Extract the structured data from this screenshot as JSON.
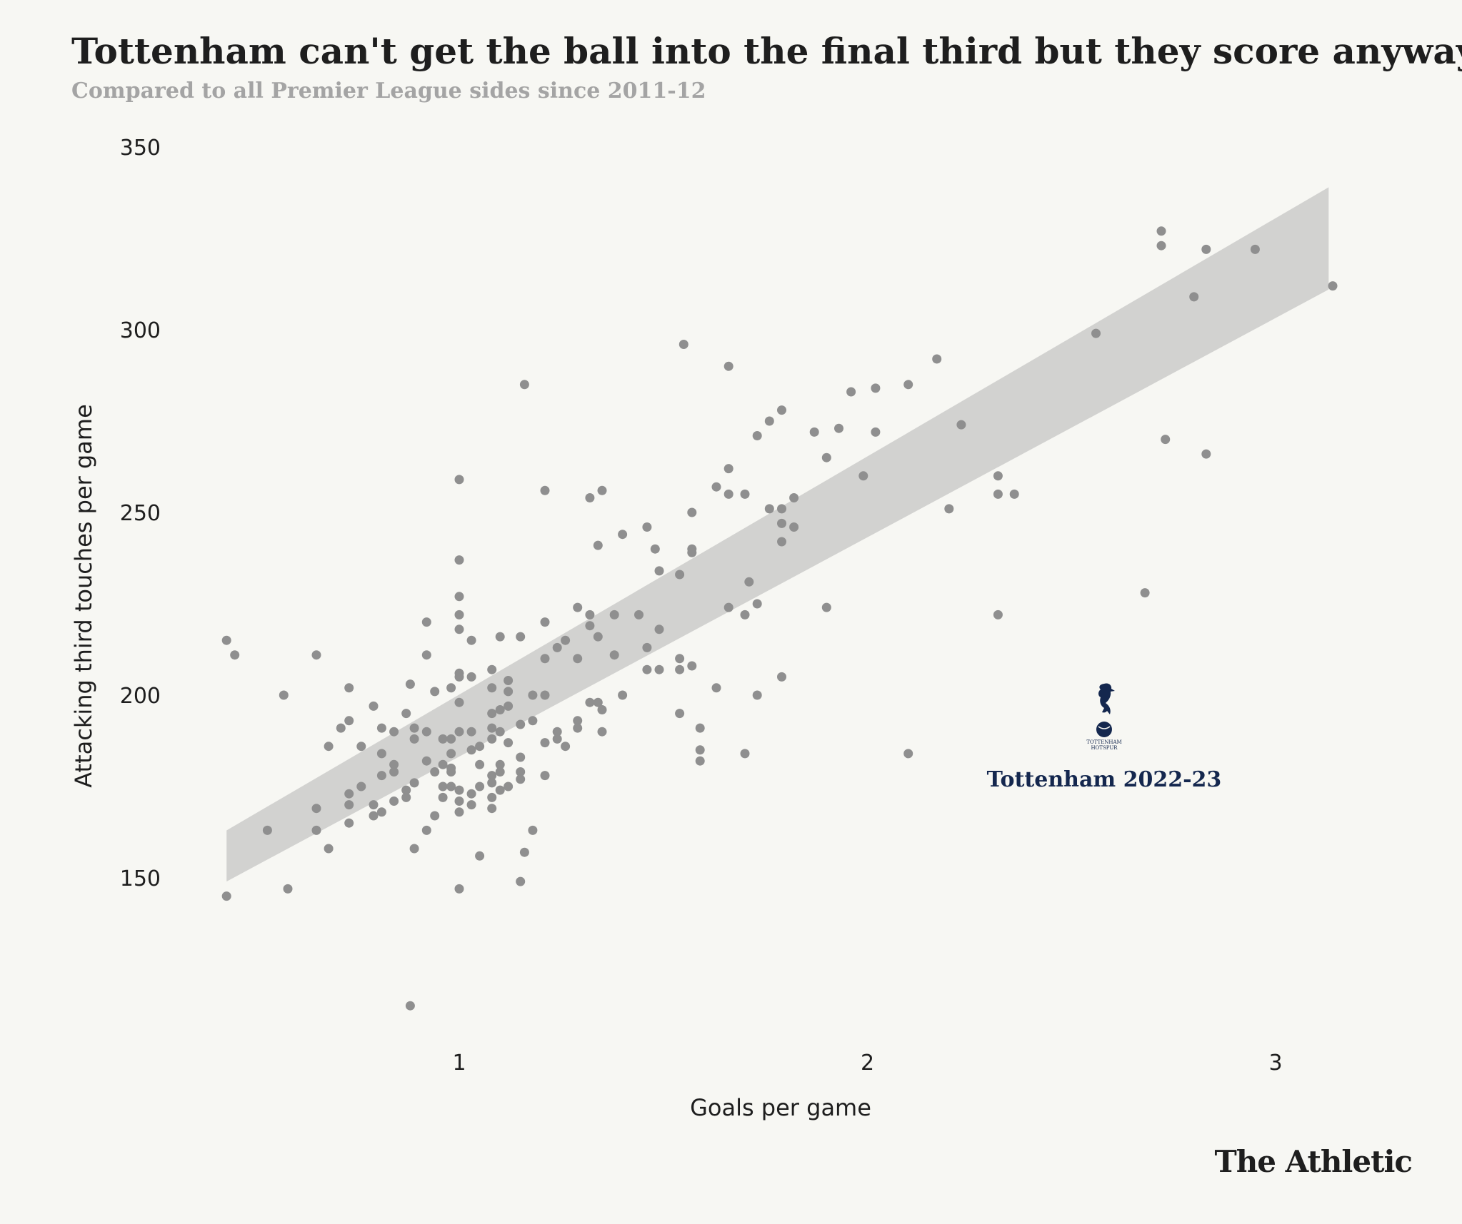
{
  "header": {
    "title": "Tottenham can't get the ball into the final third but they score anyway",
    "subtitle": "Compared to all Premier League sides since 2011-12"
  },
  "brand": "The Athletic",
  "colors": {
    "background": "#f7f7f3",
    "points": "#8f8f8f",
    "band": "#d2d2d0",
    "highlight": "#14274e"
  },
  "chart_data": {
    "type": "scatter",
    "xlabel": "Goals per game",
    "ylabel": "Attacking third touches per game",
    "xlim": [
      0.42,
      3.15
    ],
    "ylim": [
      110,
      350
    ],
    "xticks": [
      1,
      2,
      3
    ],
    "yticks": [
      150,
      200,
      250,
      300,
      350
    ],
    "grid": false,
    "legend": "none",
    "trend_band": {
      "x": [
        0.43,
        3.13
      ],
      "upper": [
        163,
        339
      ],
      "lower": [
        149,
        311
      ]
    },
    "annotation": {
      "label": "Tottenham 2022-23",
      "icon": "tottenham-crest-icon",
      "crest_text": [
        "TOTTENHAM",
        "HOTSPUR"
      ],
      "x": 2.58,
      "y": 175
    },
    "points": [
      [
        0.43,
        215
      ],
      [
        0.45,
        211
      ],
      [
        0.43,
        145
      ],
      [
        0.53,
        163
      ],
      [
        0.58,
        147
      ],
      [
        0.57,
        200
      ],
      [
        0.65,
        211
      ],
      [
        0.65,
        169
      ],
      [
        0.65,
        163
      ],
      [
        0.68,
        186
      ],
      [
        0.68,
        158
      ],
      [
        0.71,
        191
      ],
      [
        0.73,
        202
      ],
      [
        0.73,
        193
      ],
      [
        0.73,
        173
      ],
      [
        0.73,
        170
      ],
      [
        0.73,
        165
      ],
      [
        0.76,
        186
      ],
      [
        0.76,
        175
      ],
      [
        0.79,
        197
      ],
      [
        0.79,
        170
      ],
      [
        0.79,
        167
      ],
      [
        0.81,
        191
      ],
      [
        0.81,
        184
      ],
      [
        0.81,
        178
      ],
      [
        0.81,
        168
      ],
      [
        0.84,
        190
      ],
      [
        0.84,
        181
      ],
      [
        0.84,
        179
      ],
      [
        0.84,
        171
      ],
      [
        0.87,
        195
      ],
      [
        0.87,
        174
      ],
      [
        0.87,
        172
      ],
      [
        0.88,
        203
      ],
      [
        0.89,
        191
      ],
      [
        0.89,
        188
      ],
      [
        0.89,
        176
      ],
      [
        0.89,
        158
      ],
      [
        0.92,
        220
      ],
      [
        0.92,
        211
      ],
      [
        0.92,
        190
      ],
      [
        0.92,
        182
      ],
      [
        0.92,
        163
      ],
      [
        0.94,
        201
      ],
      [
        0.94,
        179
      ],
      [
        0.94,
        167
      ],
      [
        0.96,
        188
      ],
      [
        0.96,
        181
      ],
      [
        0.96,
        175
      ],
      [
        0.96,
        172
      ],
      [
        0.98,
        202
      ],
      [
        0.98,
        188
      ],
      [
        0.98,
        184
      ],
      [
        0.98,
        180
      ],
      [
        0.98,
        179
      ],
      [
        0.98,
        175
      ],
      [
        1.0,
        237
      ],
      [
        1.0,
        227
      ],
      [
        1.0,
        222
      ],
      [
        1.0,
        218
      ],
      [
        1.0,
        206
      ],
      [
        1.0,
        205
      ],
      [
        1.0,
        198
      ],
      [
        1.0,
        190
      ],
      [
        1.0,
        174
      ],
      [
        1.0,
        171
      ],
      [
        1.0,
        168
      ],
      [
        1.0,
        147
      ],
      [
        1.0,
        259
      ],
      [
        1.03,
        215
      ],
      [
        1.03,
        205
      ],
      [
        1.03,
        190
      ],
      [
        1.03,
        185
      ],
      [
        1.03,
        173
      ],
      [
        1.03,
        170
      ],
      [
        1.05,
        186
      ],
      [
        1.05,
        181
      ],
      [
        1.05,
        175
      ],
      [
        1.05,
        156
      ],
      [
        1.08,
        207
      ],
      [
        1.08,
        202
      ],
      [
        1.08,
        195
      ],
      [
        1.08,
        191
      ],
      [
        1.08,
        188
      ],
      [
        1.08,
        178
      ],
      [
        1.08,
        176
      ],
      [
        1.08,
        172
      ],
      [
        1.08,
        169
      ],
      [
        1.1,
        216
      ],
      [
        1.1,
        196
      ],
      [
        1.1,
        190
      ],
      [
        1.1,
        181
      ],
      [
        1.1,
        179
      ],
      [
        1.1,
        174
      ],
      [
        1.12,
        204
      ],
      [
        1.12,
        201
      ],
      [
        1.12,
        197
      ],
      [
        1.12,
        187
      ],
      [
        1.12,
        175
      ],
      [
        1.15,
        216
      ],
      [
        1.15,
        192
      ],
      [
        1.15,
        183
      ],
      [
        1.15,
        179
      ],
      [
        1.15,
        177
      ],
      [
        1.15,
        149
      ],
      [
        1.16,
        285
      ],
      [
        1.16,
        157
      ],
      [
        1.18,
        200
      ],
      [
        1.18,
        193
      ],
      [
        1.18,
        163
      ],
      [
        1.21,
        256
      ],
      [
        1.21,
        220
      ],
      [
        1.21,
        210
      ],
      [
        1.21,
        200
      ],
      [
        1.21,
        187
      ],
      [
        1.21,
        178
      ],
      [
        1.24,
        213
      ],
      [
        1.24,
        190
      ],
      [
        1.24,
        188
      ],
      [
        1.26,
        215
      ],
      [
        1.26,
        186
      ],
      [
        1.29,
        224
      ],
      [
        1.29,
        210
      ],
      [
        1.29,
        193
      ],
      [
        1.29,
        191
      ],
      [
        1.32,
        254
      ],
      [
        1.32,
        222
      ],
      [
        1.32,
        219
      ],
      [
        1.32,
        198
      ],
      [
        1.34,
        241
      ],
      [
        1.34,
        216
      ],
      [
        1.34,
        198
      ],
      [
        1.35,
        256
      ],
      [
        1.35,
        196
      ],
      [
        1.35,
        190
      ],
      [
        1.38,
        222
      ],
      [
        1.38,
        211
      ],
      [
        1.4,
        244
      ],
      [
        1.4,
        200
      ],
      [
        1.44,
        222
      ],
      [
        1.46,
        246
      ],
      [
        1.46,
        213
      ],
      [
        1.46,
        207
      ],
      [
        1.48,
        240
      ],
      [
        1.49,
        234
      ],
      [
        1.49,
        218
      ],
      [
        1.49,
        207
      ],
      [
        1.54,
        233
      ],
      [
        1.54,
        210
      ],
      [
        1.54,
        207
      ],
      [
        1.54,
        195
      ],
      [
        1.57,
        250
      ],
      [
        1.57,
        240
      ],
      [
        1.57,
        239
      ],
      [
        1.57,
        208
      ],
      [
        1.59,
        191
      ],
      [
        1.59,
        185
      ],
      [
        1.59,
        182
      ],
      [
        1.55,
        296
      ],
      [
        1.63,
        257
      ],
      [
        1.63,
        202
      ],
      [
        1.66,
        290
      ],
      [
        1.66,
        262
      ],
      [
        1.66,
        255
      ],
      [
        1.66,
        224
      ],
      [
        1.7,
        255
      ],
      [
        1.7,
        222
      ],
      [
        1.7,
        184
      ],
      [
        1.71,
        231
      ],
      [
        1.73,
        271
      ],
      [
        1.73,
        225
      ],
      [
        1.73,
        200
      ],
      [
        1.76,
        275
      ],
      [
        1.76,
        251
      ],
      [
        1.79,
        278
      ],
      [
        1.79,
        251
      ],
      [
        1.79,
        247
      ],
      [
        1.79,
        242
      ],
      [
        1.79,
        205
      ],
      [
        1.82,
        254
      ],
      [
        1.82,
        246
      ],
      [
        1.87,
        272
      ],
      [
        1.9,
        265
      ],
      [
        1.9,
        224
      ],
      [
        1.93,
        273
      ],
      [
        1.96,
        283
      ],
      [
        1.99,
        260
      ],
      [
        2.02,
        284
      ],
      [
        2.02,
        272
      ],
      [
        2.1,
        285
      ],
      [
        2.1,
        184
      ],
      [
        2.17,
        292
      ],
      [
        2.2,
        251
      ],
      [
        2.23,
        274
      ],
      [
        2.32,
        260
      ],
      [
        2.32,
        255
      ],
      [
        2.32,
        222
      ],
      [
        2.36,
        255
      ],
      [
        2.56,
        299
      ],
      [
        2.68,
        228
      ],
      [
        2.72,
        327
      ],
      [
        2.72,
        323
      ],
      [
        2.73,
        270
      ],
      [
        2.8,
        309
      ],
      [
        2.83,
        322
      ],
      [
        2.83,
        266
      ],
      [
        2.95,
        322
      ],
      [
        3.14,
        312
      ],
      [
        0.88,
        115
      ]
    ]
  }
}
